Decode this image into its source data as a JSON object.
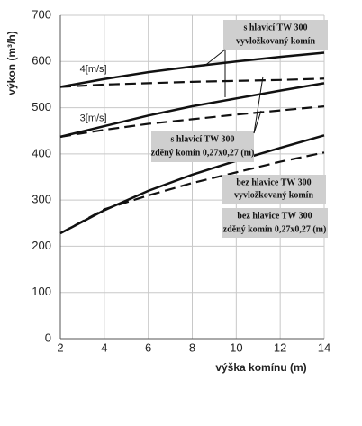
{
  "chart_data": {
    "type": "line",
    "y_label": "výkon (m³/h)",
    "x_label": "výška komínu (m)",
    "x": [
      2,
      4,
      6,
      8,
      10,
      12,
      14
    ],
    "xlim": [
      2,
      14
    ],
    "xticks": [
      2,
      4,
      6,
      8,
      10,
      12,
      14
    ],
    "ylim": [
      0,
      700
    ],
    "yticks": [
      0,
      100,
      200,
      300,
      400,
      500,
      600,
      700
    ],
    "grid": true,
    "series": [
      {
        "color": "#111111",
        "dash": false,
        "values": [
          545,
          562,
          577,
          589,
          600,
          610,
          619
        ]
      },
      {
        "color": "#111111",
        "dash": true,
        "values": [
          545,
          550,
          553,
          556,
          558,
          560,
          563
        ]
      },
      {
        "color": "#111111",
        "dash": false,
        "values": [
          437,
          460,
          483,
          503,
          520,
          537,
          553
        ]
      },
      {
        "color": "#111111",
        "dash": true,
        "values": [
          437,
          452,
          465,
          475,
          485,
          494,
          503
        ]
      },
      {
        "color": "#111111",
        "dash": false,
        "values": [
          228,
          278,
          320,
          355,
          385,
          413,
          440
        ]
      },
      {
        "color": "#111111",
        "dash": true,
        "values": [
          228,
          280,
          310,
          337,
          360,
          383,
          403
        ]
      }
    ],
    "annotations": [
      {
        "text": "4[m/s]",
        "x": 3.5,
        "y": 583
      },
      {
        "text": "3[m/s]",
        "x": 3.5,
        "y": 477
      }
    ],
    "callouts": [
      [
        "s hlavicí TW 300",
        "vyvložkovaný komín"
      ],
      [
        "s hlavicí TW 300",
        "zděný komín 0,27x0,27 (m)"
      ],
      [
        "bez hlavice TW 300",
        "vyvložkovaný komín"
      ],
      [
        "bez hlavice TW 300",
        "zděný komín 0,27x0,27 (m)"
      ]
    ]
  }
}
